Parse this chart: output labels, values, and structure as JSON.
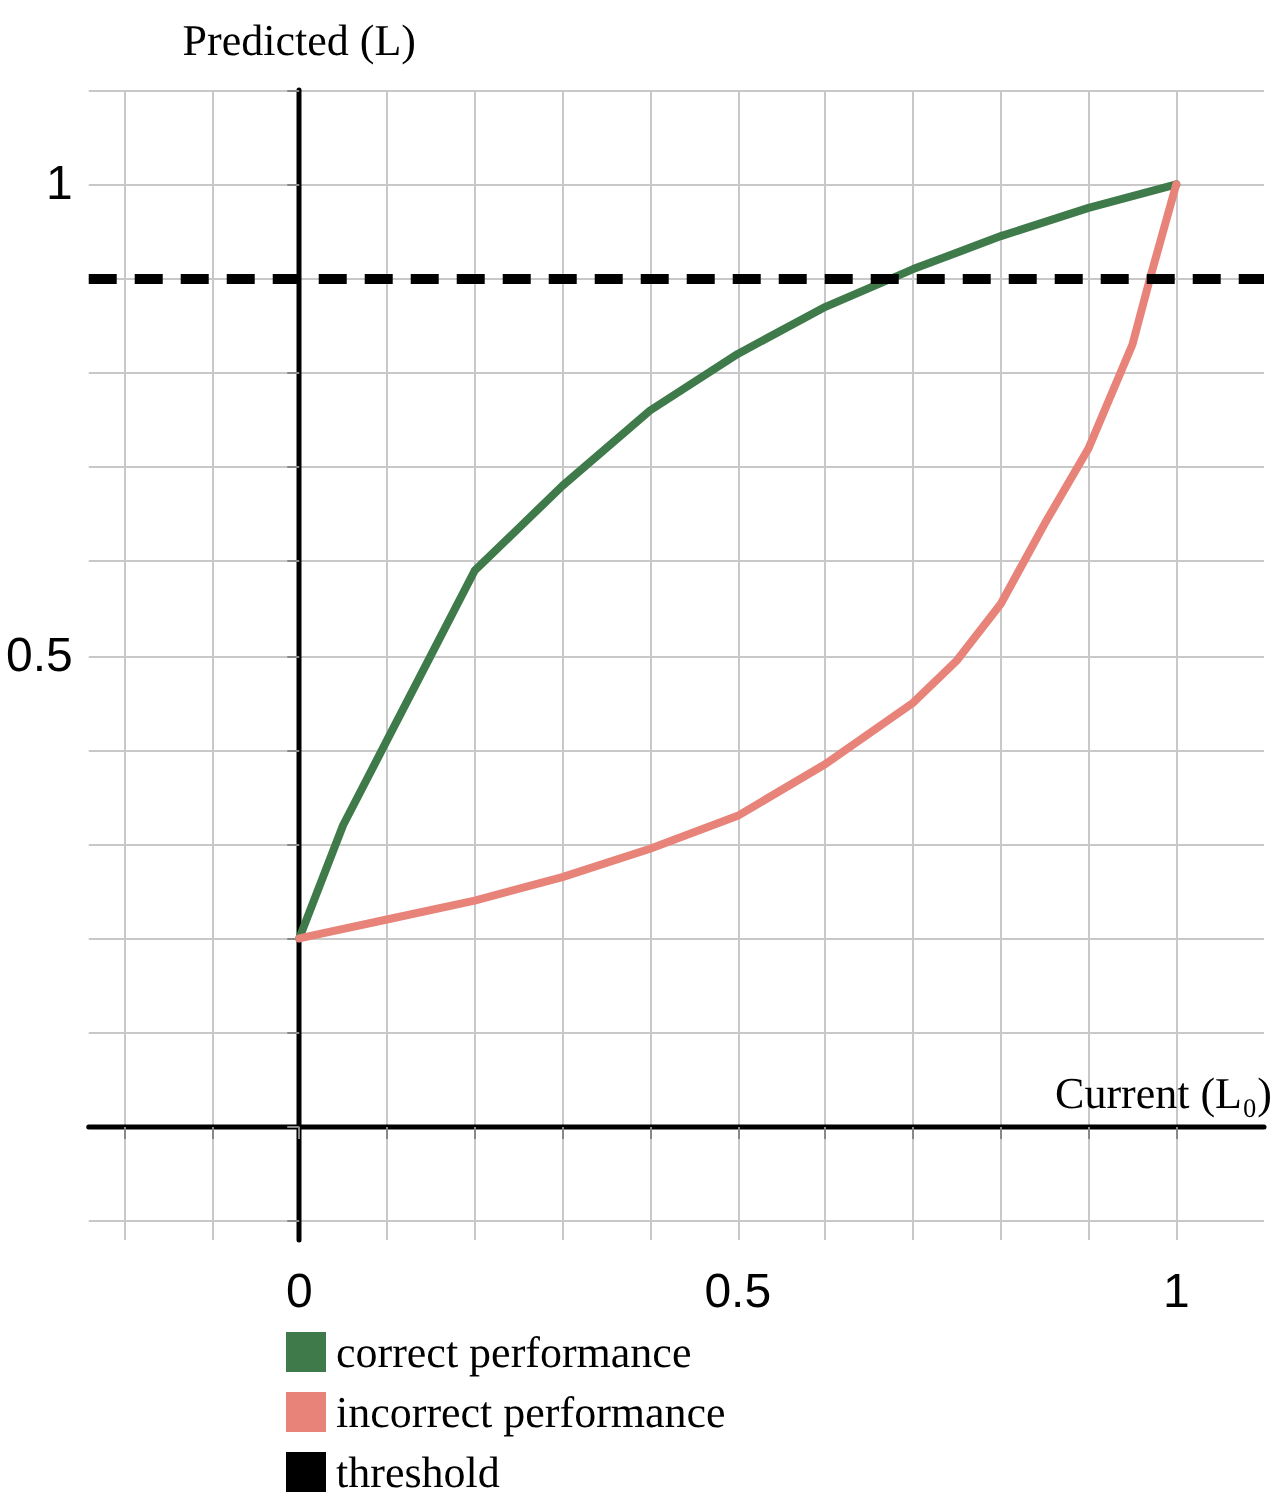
{
  "chart_data": {
    "type": "line",
    "xlabel": "Current (L₀)",
    "ylabel": "Predicted (L)",
    "series": [
      {
        "name": "correct performance",
        "color": "#3f7a4a",
        "x": [
          0,
          0.05,
          0.1,
          0.15,
          0.2,
          0.3,
          0.4,
          0.5,
          0.6,
          0.7,
          0.8,
          0.9,
          1
        ],
        "values": [
          0.2,
          0.32,
          0.41,
          0.5,
          0.59,
          0.68,
          0.76,
          0.82,
          0.87,
          0.91,
          0.945,
          0.975,
          1
        ]
      },
      {
        "name": "incorrect performance",
        "color": "#e8837a",
        "x": [
          0,
          0.1,
          0.2,
          0.3,
          0.4,
          0.5,
          0.6,
          0.7,
          0.75,
          0.8,
          0.85,
          0.9,
          0.95,
          0.97,
          1
        ],
        "values": [
          0.2,
          0.22,
          0.24,
          0.265,
          0.295,
          0.33,
          0.385,
          0.45,
          0.495,
          0.555,
          0.64,
          0.72,
          0.83,
          0.9,
          1
        ]
      }
    ],
    "ref_lines": [
      {
        "axis": "y",
        "value": 0.9,
        "label": "threshold",
        "color": "#000000",
        "line_style": "dashed"
      }
    ],
    "xlim": [
      -0.24,
      1.1
    ],
    "ylim": [
      -0.12,
      1.1
    ],
    "xticks": [
      {
        "value": -0.2,
        "label": null
      },
      {
        "value": -0.1,
        "label": null
      },
      0,
      {
        "value": 0.1,
        "label": null
      },
      {
        "value": 0.2,
        "label": null
      },
      {
        "value": 0.3,
        "label": null
      },
      {
        "value": 0.4,
        "label": null
      },
      0.5,
      {
        "value": 0.6,
        "label": null
      },
      {
        "value": 0.7,
        "label": null
      },
      {
        "value": 0.8,
        "label": null
      },
      {
        "value": 0.9,
        "label": null
      },
      1
    ],
    "yticks": [
      {
        "value": -0.1,
        "label": null
      },
      {
        "value": 0,
        "label": null
      },
      {
        "value": 0.1,
        "label": null
      },
      {
        "value": 0.2,
        "label": null
      },
      {
        "value": 0.3,
        "label": null
      },
      {
        "value": 0.4,
        "label": null
      },
      0.5,
      {
        "value": 0.6,
        "label": null
      },
      {
        "value": 0.7,
        "label": null
      },
      {
        "value": 0.8,
        "label": null
      },
      {
        "value": 0.9,
        "label": null
      },
      1,
      {
        "value": 1.1,
        "label": null
      }
    ],
    "grid": true,
    "legend": "bottom",
    "marker": "none",
    "line_style": "solid"
  }
}
